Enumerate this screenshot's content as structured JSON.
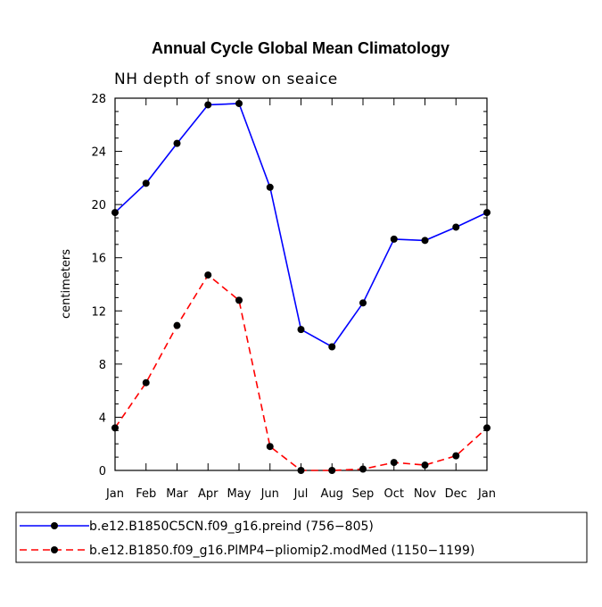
{
  "chart_data": {
    "type": "line",
    "title": "Annual Cycle Global Mean Climatology",
    "subtitle": "NH depth of snow on seaice",
    "xlabel": "",
    "ylabel": "centimeters",
    "categories": [
      "Jan",
      "Feb",
      "Mar",
      "Apr",
      "May",
      "Jun",
      "Jul",
      "Aug",
      "Sep",
      "Oct",
      "Nov",
      "Dec",
      "Jan"
    ],
    "ylim": [
      0,
      28
    ],
    "yticks": [
      0,
      4,
      8,
      12,
      16,
      20,
      24,
      28
    ],
    "ytick_labels": [
      "0",
      "4",
      "8",
      "12",
      "16",
      "20",
      "24",
      "28"
    ],
    "grid": false,
    "legend_position": "bottom",
    "series": [
      {
        "name": "b.e12.B1850C5CN.f09_g16.preind (756−805)",
        "color": "#0000ff",
        "dash": "solid",
        "values": [
          19.4,
          21.6,
          24.6,
          27.5,
          27.6,
          21.3,
          10.6,
          9.3,
          12.6,
          17.4,
          17.3,
          18.3,
          19.4
        ]
      },
      {
        "name": "b.e12.B1850.f09_g16.PlMP4−pliomip2.modMed (1150−1199)",
        "color": "#ff0000",
        "dash": "dashed",
        "values": [
          3.2,
          6.6,
          10.9,
          14.7,
          12.8,
          1.8,
          0.0,
          0.0,
          0.1,
          0.6,
          0.4,
          1.1,
          3.2
        ]
      }
    ]
  }
}
